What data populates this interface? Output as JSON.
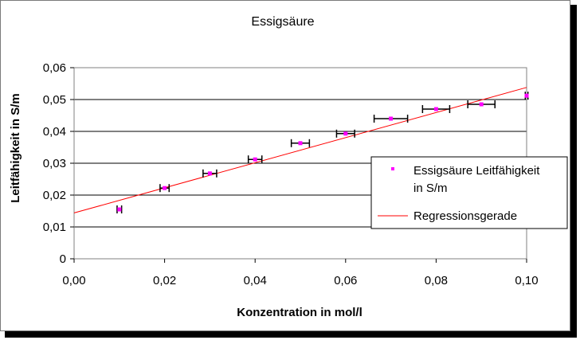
{
  "chart_data": {
    "type": "scatter",
    "title": "Essigsäure",
    "xlabel": "Konzentration in mol/l",
    "ylabel": "Leitfähigkeit in S/m",
    "xlim": [
      0,
      0.1
    ],
    "ylim": [
      0,
      0.06
    ],
    "x_ticks": [
      "0,00",
      "0,02",
      "0,04",
      "0,06",
      "0,08",
      "0,10"
    ],
    "y_ticks": [
      "0",
      "0,01",
      "0,02",
      "0,03",
      "0,04",
      "0,05",
      "0,06"
    ],
    "grid": "horizontal",
    "legend_position": "right",
    "series": [
      {
        "name": "Essigsäure Leitfähigkeit in S/m",
        "color": "#ff00ff",
        "marker": "square",
        "points": [
          {
            "x": 0.01,
            "y": 0.0155,
            "xerr": 0.0005
          },
          {
            "x": 0.02,
            "y": 0.0222,
            "xerr": 0.001
          },
          {
            "x": 0.03,
            "y": 0.0268,
            "xerr": 0.0015
          },
          {
            "x": 0.04,
            "y": 0.0312,
            "xerr": 0.0015
          },
          {
            "x": 0.05,
            "y": 0.0363,
            "xerr": 0.002
          },
          {
            "x": 0.06,
            "y": 0.0393,
            "xerr": 0.002
          },
          {
            "x": 0.07,
            "y": 0.044,
            "xerr": 0.0037
          },
          {
            "x": 0.08,
            "y": 0.047,
            "xerr": 0.003
          },
          {
            "x": 0.09,
            "y": 0.0485,
            "xerr": 0.003
          },
          {
            "x": 0.1,
            "y": 0.0512,
            "xerr": 0.0003
          }
        ]
      }
    ],
    "regression": {
      "name": "Regressionsgerade",
      "color": "#ff0000",
      "intercept": 0.0144,
      "slope": 0.394
    }
  }
}
